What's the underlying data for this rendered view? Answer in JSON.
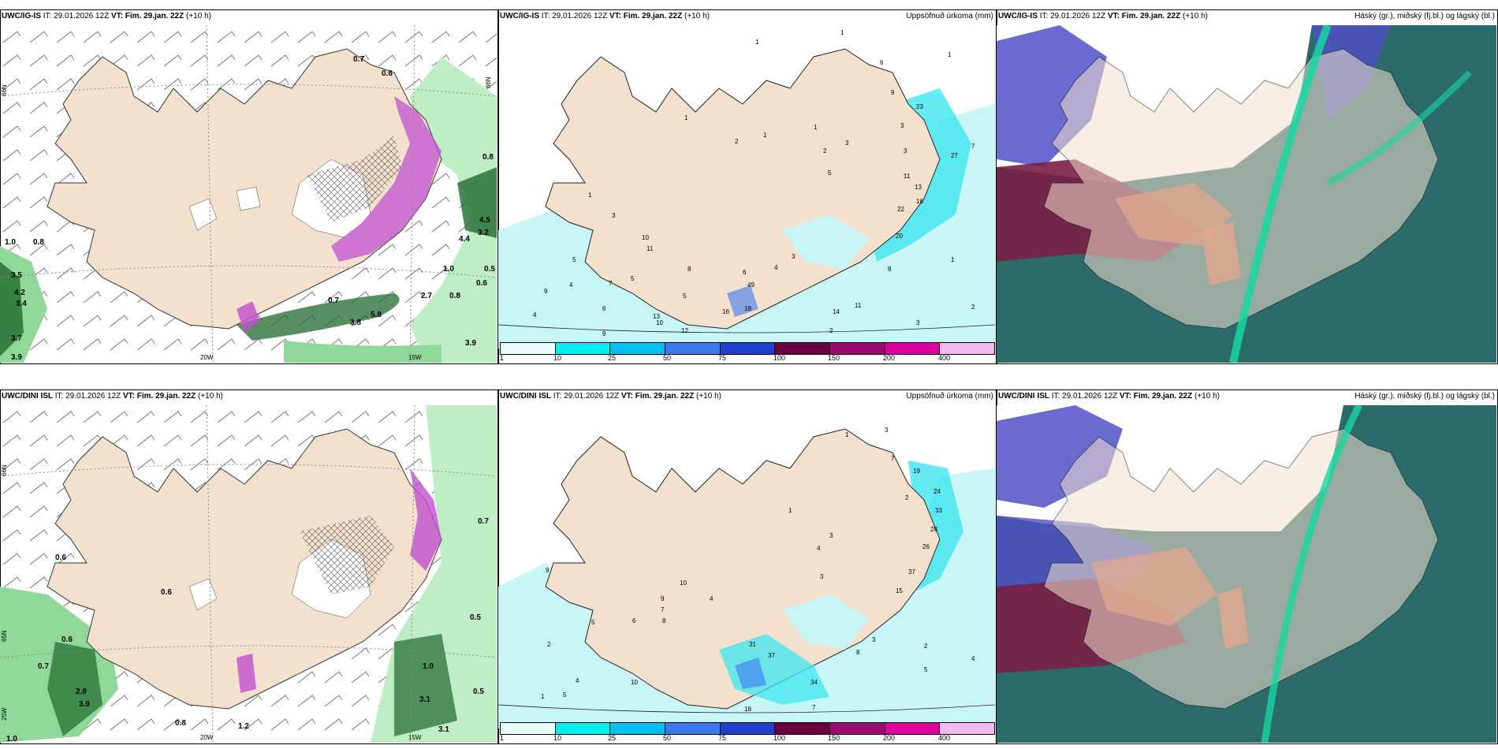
{
  "rows": [
    {
      "model": "UWC/IG-IS",
      "it_label": "IT:",
      "it_value": "29.01.2026 12Z",
      "vt_label": "VT:",
      "vt_value": "Fim. 29.jan. 22Z",
      "lead": "(+10 h)"
    },
    {
      "model": "UWC/DINI ISL",
      "it_label": "IT:",
      "it_value": "29.01.2026 12Z",
      "vt_label": "VT:",
      "vt_value": "Fim. 29.jan. 22Z",
      "lead": "(+10 h)"
    }
  ],
  "precip_title": "Uppsöfnuð úrkoma (mm)",
  "cloud_title": "Háský (gr.), miðský (fj.bl.) og lágský (bl.)",
  "colorbar": {
    "ticks": [
      "1",
      "10",
      "25",
      "50",
      "75",
      "100",
      "150",
      "200",
      "400"
    ],
    "colors": [
      "#e8fcfc",
      "#00f0f0",
      "#00c0ef",
      "#3a78f0",
      "#2040d0",
      "#6a0040",
      "#9a0a70",
      "#e000a0",
      "#f4b8f0"
    ]
  },
  "axis_labels": {
    "lat66": "66N",
    "lat65": "65N",
    "lon20": "20W",
    "lon15": "15W",
    "lon25": "25W"
  },
  "colors": {
    "land": "#f3e1cd",
    "precip_light": "#c8f6f6",
    "precip_mid": "#3fe6f0",
    "wind_green": "#8fd89a",
    "wind_dark": "#1f6a2d",
    "snow_magenta": "#c050d0",
    "cloud_high": "#7a1f45",
    "cloud_mid": "#d06040",
    "cloud_low": "#2c6b6b",
    "cloud_blue": "#5050c8"
  },
  "wind_values_top": [
    "0.7",
    "0.6",
    "1.0",
    "0.8",
    "3.5",
    "4.2",
    "3.4",
    "3.7",
    "3.9",
    "0.8",
    "4.5",
    "3.2",
    "4.4",
    "1.0",
    "0.5",
    "0.6",
    "2.7",
    "0.8",
    "0.7",
    "3.8",
    "5.8",
    "3.9"
  ],
  "wind_values_bottom": [
    "0.6",
    "0.6",
    "0.7",
    "0.6",
    "2.8",
    "3.9",
    "0.8",
    "1.2",
    "1.0",
    "0.7",
    "0.5",
    "1.0",
    "0.5",
    "3.1",
    "3.1"
  ],
  "precip_values_top": [
    "1",
    "1",
    "6",
    "9",
    "1",
    "1",
    "2",
    "1",
    "1",
    "2",
    "3",
    "5",
    "1",
    "23",
    "3",
    "3",
    "11",
    "13",
    "16",
    "27",
    "3",
    "22",
    "20",
    "10",
    "11",
    "4",
    "5",
    "7",
    "9",
    "5",
    "8",
    "4",
    "6",
    "13",
    "12",
    "9",
    "10",
    "5",
    "6",
    "4",
    "3",
    "49",
    "16",
    "18",
    "14",
    "11",
    "2",
    "3",
    "8",
    "7",
    "2",
    "1"
  ],
  "precip_values_bottom": [
    "3",
    "1",
    "7",
    "19",
    "2",
    "24",
    "33",
    "28",
    "26",
    "37",
    "15",
    "9",
    "1",
    "3",
    "4",
    "10",
    "9",
    "7",
    "8",
    "5",
    "2",
    "6",
    "4",
    "3",
    "31",
    "37",
    "34",
    "18",
    "10",
    "8",
    "3",
    "2",
    "5",
    "4",
    "1",
    "7",
    "4",
    "5"
  ]
}
